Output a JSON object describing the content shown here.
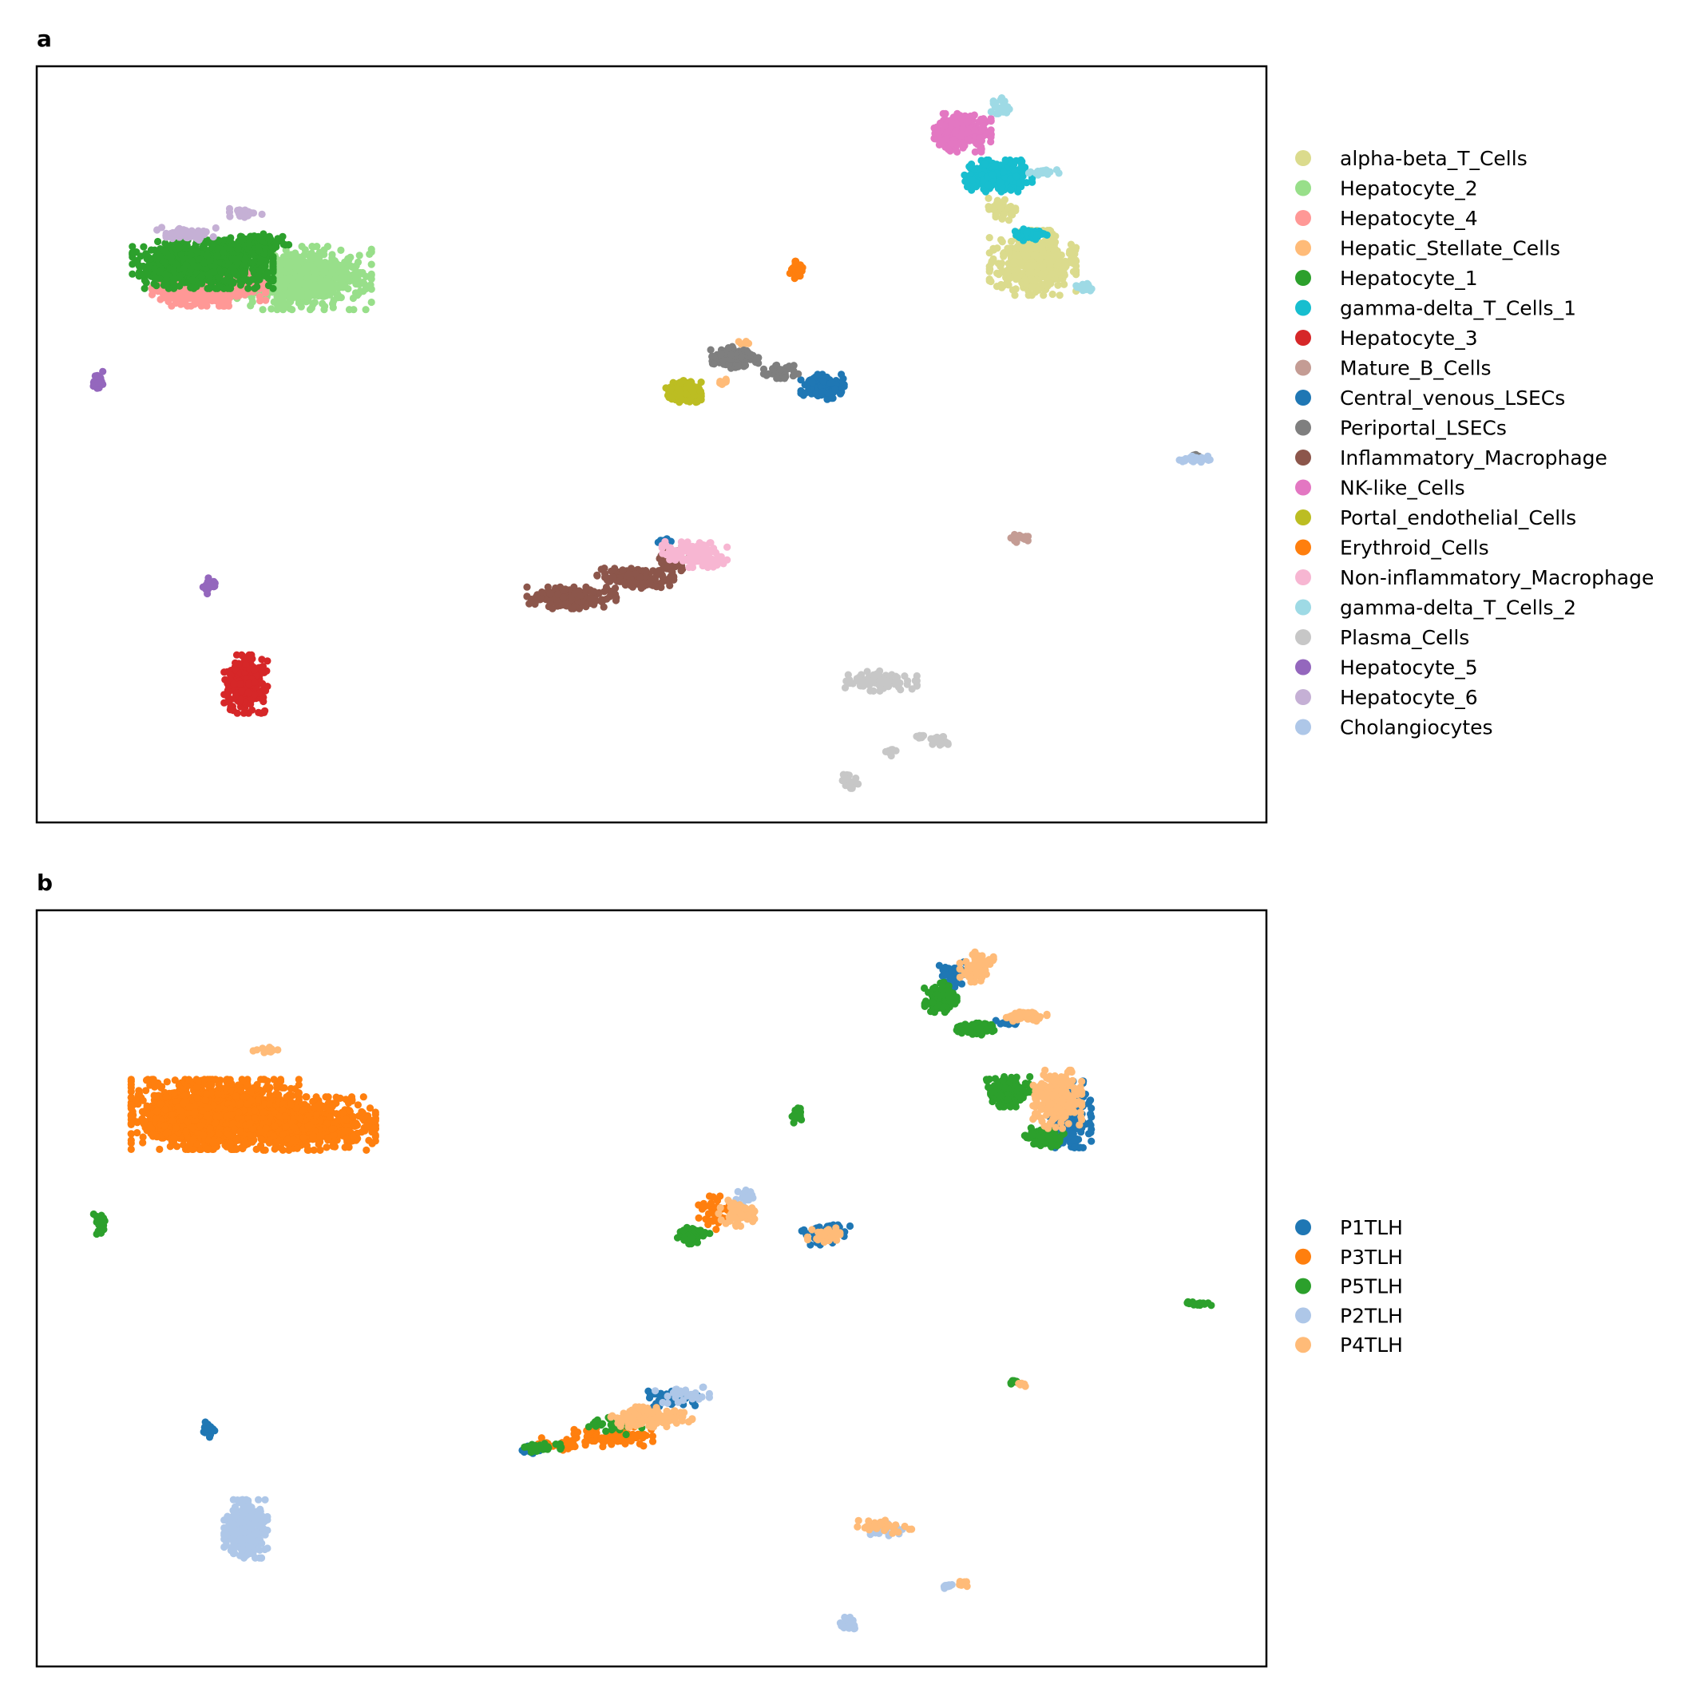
{
  "chart_data": [
    {
      "panel_label": "a",
      "type": "scatter",
      "title": "",
      "xlabel": "",
      "ylabel": "",
      "axes": "no ticks",
      "xlim": [
        0,
        100
      ],
      "ylim": [
        0,
        100
      ],
      "legend_position": "right",
      "series": [
        {
          "name": "alpha-beta_T_Cells",
          "color": "#dbdb8d",
          "blobs": [
            [
              81,
              74,
              3.2,
              3.9,
              500
            ],
            [
              78.5,
              81,
              1.0,
              1.5,
              40
            ]
          ]
        },
        {
          "name": "Hepatocyte_2",
          "color": "#98df8a",
          "blobs": [
            [
              21.5,
              72,
              5.2,
              3.8,
              700
            ]
          ]
        },
        {
          "name": "Hepatocyte_4",
          "color": "#ff9896",
          "blobs": [
            [
              14,
              70.5,
              4.2,
              2.0,
              400
            ]
          ]
        },
        {
          "name": "Hepatic_Stellate_Cells",
          "color": "#ffbb78",
          "blobs": [
            [
              55.7,
              58.3,
              0.6,
              0.5,
              12
            ],
            [
              57.5,
              63.5,
              0.4,
              0.4,
              5
            ]
          ]
        },
        {
          "name": "Hepatocyte_1",
          "color": "#2ca02c",
          "blobs": [
            [
              13.5,
              73.8,
              5.2,
              2.9,
              900
            ],
            [
              18.2,
              76.5,
              2.3,
              1.2,
              100
            ]
          ]
        },
        {
          "name": "gamma-delta_T_Cells_1",
          "color": "#17becf",
          "blobs": [
            [
              78.2,
              85.5,
              2.5,
              1.9,
              250
            ],
            [
              80.8,
              77.7,
              1.3,
              0.7,
              60
            ]
          ]
        },
        {
          "name": "Hepatocyte_3",
          "color": "#d62728",
          "blobs": [
            [
              17.0,
              18.3,
              1.6,
              3.5,
              250
            ]
          ]
        },
        {
          "name": "Mature_B_Cells",
          "color": "#c49c94",
          "blobs": [
            [
              79.8,
              37.6,
              0.8,
              0.5,
              15
            ]
          ]
        },
        {
          "name": "Central_venous_LSECs",
          "color": "#1f77b4",
          "blobs": [
            [
              63.9,
              57.6,
              1.6,
              1.5,
              150
            ],
            [
              51.2,
              37.2,
              0.6,
              0.4,
              8
            ]
          ]
        },
        {
          "name": "Periportal_LSECs",
          "color": "#7f7f7f",
          "blobs": [
            [
              56.7,
              61.5,
              1.8,
              1.3,
              120
            ],
            [
              60.5,
              59.6,
              1.4,
              0.8,
              40
            ],
            [
              94.3,
              48.4,
              0.4,
              0.3,
              5
            ]
          ]
        },
        {
          "name": "Inflammatory_Macrophage",
          "color": "#8c564b",
          "blobs": [
            [
              43.5,
              29.7,
              3.3,
              1.3,
              200
            ],
            [
              48.5,
              32.3,
              3.0,
              1.2,
              150
            ],
            [
              51.5,
              34.5,
              1.3,
              1.3,
              40
            ]
          ]
        },
        {
          "name": "NK-like_Cells",
          "color": "#e377c2",
          "blobs": [
            [
              75.3,
              91.2,
              2.1,
              2.3,
              300
            ]
          ]
        },
        {
          "name": "Portal_endothelial_Cells",
          "color": "#bcbd22",
          "blobs": [
            [
              52.6,
              57.0,
              1.3,
              1.3,
              150
            ]
          ]
        },
        {
          "name": "Erythroid_Cells",
          "color": "#ff7f0e",
          "blobs": [
            [
              61.8,
              73.0,
              0.5,
              1.1,
              25
            ]
          ]
        },
        {
          "name": "Non-inflammatory_Macrophage",
          "color": "#f7b6d2",
          "blobs": [
            [
              53.5,
              35.5,
              2.4,
              1.6,
              150
            ]
          ]
        },
        {
          "name": "gamma-delta_T_Cells_2",
          "color": "#9edae5",
          "blobs": [
            [
              78.5,
              94.5,
              0.8,
              1.2,
              30
            ],
            [
              82.0,
              86.0,
              1.2,
              0.5,
              20
            ],
            [
              85.3,
              70.8,
              0.7,
              0.6,
              20
            ]
          ]
        },
        {
          "name": "Plasma_Cells",
          "color": "#c7c7c7",
          "blobs": [
            [
              68.5,
              18.7,
              2.8,
              1.2,
              80
            ],
            [
              73.5,
              10.8,
              0.7,
              0.7,
              20
            ],
            [
              69.6,
              9.3,
              0.5,
              0.5,
              10
            ],
            [
              66.0,
              5.5,
              0.8,
              0.9,
              25
            ],
            [
              72.0,
              11.3,
              0.4,
              0.4,
              8
            ]
          ]
        },
        {
          "name": "Hepatocyte_5",
          "color": "#9467bd",
          "blobs": [
            [
              5.1,
              58.5,
              0.5,
              1.2,
              25
            ],
            [
              14.0,
              31.3,
              0.5,
              1.0,
              25
            ]
          ]
        },
        {
          "name": "Hepatocyte_6",
          "color": "#c5b0d5",
          "blobs": [
            [
              12.2,
              77.8,
              2.2,
              0.8,
              60
            ],
            [
              17.0,
              80.5,
              1.2,
              0.6,
              30
            ]
          ]
        },
        {
          "name": "Cholangiocytes",
          "color": "#aec7e8",
          "blobs": [
            [
              94.2,
              48.0,
              1.4,
              0.4,
              30
            ]
          ]
        }
      ]
    },
    {
      "panel_label": "b",
      "type": "scatter",
      "title": "",
      "xlabel": "",
      "ylabel": "",
      "axes": "no ticks",
      "xlim": [
        0,
        100
      ],
      "ylim": [
        0,
        100
      ],
      "legend_position": "right",
      "series": [
        {
          "name": "P1TLH",
          "color": "#1f77b4",
          "blobs": [
            [
              84.0,
              73.0,
              1.6,
              4.0,
              200
            ],
            [
              74.5,
              91.5,
              1.0,
              1.5,
              40
            ],
            [
              64.2,
              57.3,
              1.8,
              1.4,
              60
            ],
            [
              51.5,
              35.5,
              2.2,
              1.4,
              50
            ],
            [
              40.5,
              28.6,
              1.2,
              0.6,
              20
            ],
            [
              14.0,
              31.3,
              0.5,
              1.0,
              25
            ],
            [
              79.0,
              85.0,
              1.0,
              0.6,
              15
            ]
          ]
        },
        {
          "name": "P3TLH",
          "color": "#ff7f0e",
          "blobs": [
            [
              14.5,
              73.0,
              6.2,
              4.2,
              1600
            ],
            [
              21.5,
              71.8,
              5.5,
              3.2,
              800
            ],
            [
              47.0,
              30.5,
              3.0,
              1.3,
              100
            ],
            [
              55.0,
              60.0,
              1.3,
              2.0,
              40
            ],
            [
              43.0,
              29.5,
              2.0,
              0.8,
              30
            ]
          ]
        },
        {
          "name": "P5TLH",
          "color": "#2ca02c",
          "blobs": [
            [
              73.5,
              88.5,
              1.2,
              1.8,
              120
            ],
            [
              76.2,
              84.3,
              1.5,
              0.7,
              80
            ],
            [
              79.0,
              76.0,
              1.6,
              1.8,
              180
            ],
            [
              82.0,
              70.0,
              1.5,
              1.2,
              80
            ],
            [
              53.3,
              57.0,
              1.3,
              1.0,
              80
            ],
            [
              41.0,
              29.0,
              1.5,
              0.6,
              40
            ],
            [
              61.8,
              73.0,
              0.5,
              1.1,
              25
            ],
            [
              5.1,
              58.5,
              0.5,
              1.2,
              25
            ],
            [
              94.3,
              48.0,
              1.1,
              0.3,
              15
            ],
            [
              47.0,
              32.0,
              2.0,
              1.2,
              40
            ],
            [
              79.5,
              37.6,
              0.5,
              0.4,
              8
            ]
          ]
        },
        {
          "name": "P2TLH",
          "color": "#aec7e8",
          "blobs": [
            [
              17.0,
              18.2,
              1.6,
              3.5,
              280
            ],
            [
              66.0,
              5.5,
              0.8,
              0.9,
              25
            ],
            [
              69.0,
              18.0,
              2.0,
              1.0,
              20
            ],
            [
              74.0,
              10.5,
              0.6,
              0.5,
              10
            ],
            [
              57.5,
              62.0,
              1.2,
              1.0,
              20
            ],
            [
              52.5,
              36.0,
              2.0,
              1.2,
              30
            ]
          ]
        },
        {
          "name": "P4TLH",
          "color": "#ffbb78",
          "blobs": [
            [
              76.5,
              92.5,
              1.3,
              1.8,
              80
            ],
            [
              80.5,
              86.0,
              1.5,
              0.6,
              60
            ],
            [
              83.0,
              75.0,
              1.8,
              3.5,
              250
            ],
            [
              57.0,
              60.0,
              1.6,
              1.6,
              60
            ],
            [
              50.0,
              33.0,
              3.0,
              1.2,
              150
            ],
            [
              64.0,
              57.0,
              1.2,
              0.9,
              30
            ],
            [
              18.5,
              81.5,
              1.0,
              0.4,
              15
            ],
            [
              68.5,
              18.5,
              2.4,
              1.0,
              30
            ],
            [
              75.5,
              11.0,
              0.5,
              0.5,
              10
            ],
            [
              80.0,
              37.3,
              0.5,
              0.3,
              6
            ]
          ]
        }
      ]
    }
  ]
}
